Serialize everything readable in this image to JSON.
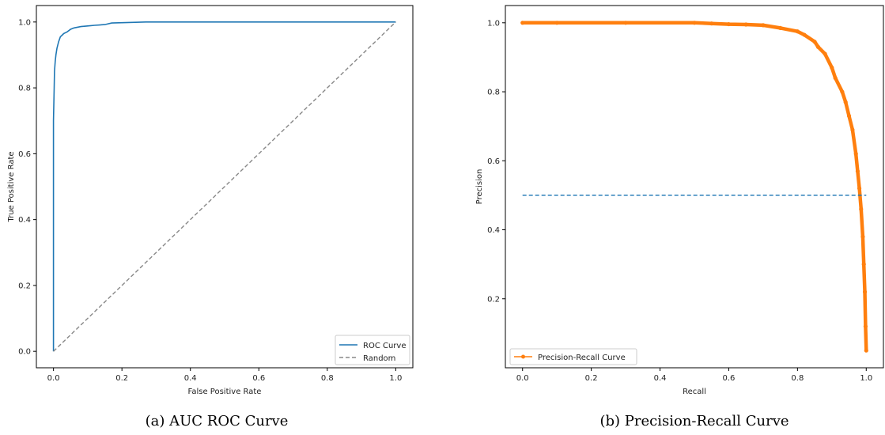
{
  "chart_data": [
    {
      "type": "line",
      "caption": "(a) AUC ROC Curve",
      "xlabel": "False Positive Rate",
      "ylabel": "True Positive Rate",
      "xlim": [
        -0.05,
        1.05
      ],
      "ylim": [
        -0.05,
        1.05
      ],
      "xticks": [
        "0.0",
        "0.2",
        "0.4",
        "0.6",
        "0.8",
        "1.0"
      ],
      "yticks": [
        "0.0",
        "0.2",
        "0.4",
        "0.6",
        "0.8",
        "1.0"
      ],
      "grid": false,
      "legend_position": "lower-right",
      "series": [
        {
          "name": "ROC Curve",
          "color": "#1f77b4",
          "style": "solid",
          "x": [
            0,
            0,
            0.002,
            0.003,
            0.005,
            0.007,
            0.01,
            0.015,
            0.02,
            0.025,
            0.03,
            0.04,
            0.05,
            0.06,
            0.08,
            0.1,
            0.12,
            0.15,
            0.17,
            0.2,
            0.27,
            0.4,
            1.0
          ],
          "y": [
            0,
            0.7,
            0.8,
            0.85,
            0.88,
            0.9,
            0.92,
            0.94,
            0.955,
            0.96,
            0.965,
            0.97,
            0.978,
            0.982,
            0.986,
            0.988,
            0.99,
            0.992,
            0.997,
            0.998,
            1.0,
            1.0,
            1.0
          ]
        },
        {
          "name": "Random",
          "color": "#888888",
          "style": "dashed",
          "x": [
            0,
            1
          ],
          "y": [
            0,
            1
          ]
        }
      ]
    },
    {
      "type": "line",
      "caption": "(b) Precision-Recall Curve",
      "xlabel": "Recall",
      "ylabel": "Precision",
      "xlim": [
        -0.05,
        1.05
      ],
      "ylim": [
        0.0,
        1.05
      ],
      "xticks": [
        "0.0",
        "0.2",
        "0.4",
        "0.6",
        "0.8",
        "1.0"
      ],
      "yticks": [
        "0.2",
        "0.4",
        "0.6",
        "0.8",
        "1.0"
      ],
      "grid": false,
      "legend_position": "lower-left",
      "series": [
        {
          "name": "Precision-Recall Curve",
          "color": "#ff7f0e",
          "style": "solid-marker",
          "x": [
            0,
            0.1,
            0.3,
            0.5,
            0.55,
            0.6,
            0.65,
            0.7,
            0.75,
            0.8,
            0.82,
            0.85,
            0.86,
            0.88,
            0.9,
            0.91,
            0.93,
            0.94,
            0.95,
            0.96,
            0.97,
            0.975,
            0.98,
            0.985,
            0.99,
            0.993,
            0.996,
            0.998,
            1.0
          ],
          "y": [
            1.0,
            1.0,
            1.0,
            1.0,
            0.998,
            0.996,
            0.995,
            0.993,
            0.985,
            0.975,
            0.965,
            0.945,
            0.93,
            0.91,
            0.87,
            0.84,
            0.8,
            0.77,
            0.73,
            0.69,
            0.62,
            0.57,
            0.52,
            0.46,
            0.38,
            0.3,
            0.22,
            0.12,
            0.05
          ]
        },
        {
          "name": "",
          "color": "#1f77b4",
          "style": "dashed",
          "x": [
            0,
            1
          ],
          "y": [
            0.5,
            0.5
          ]
        }
      ]
    }
  ]
}
